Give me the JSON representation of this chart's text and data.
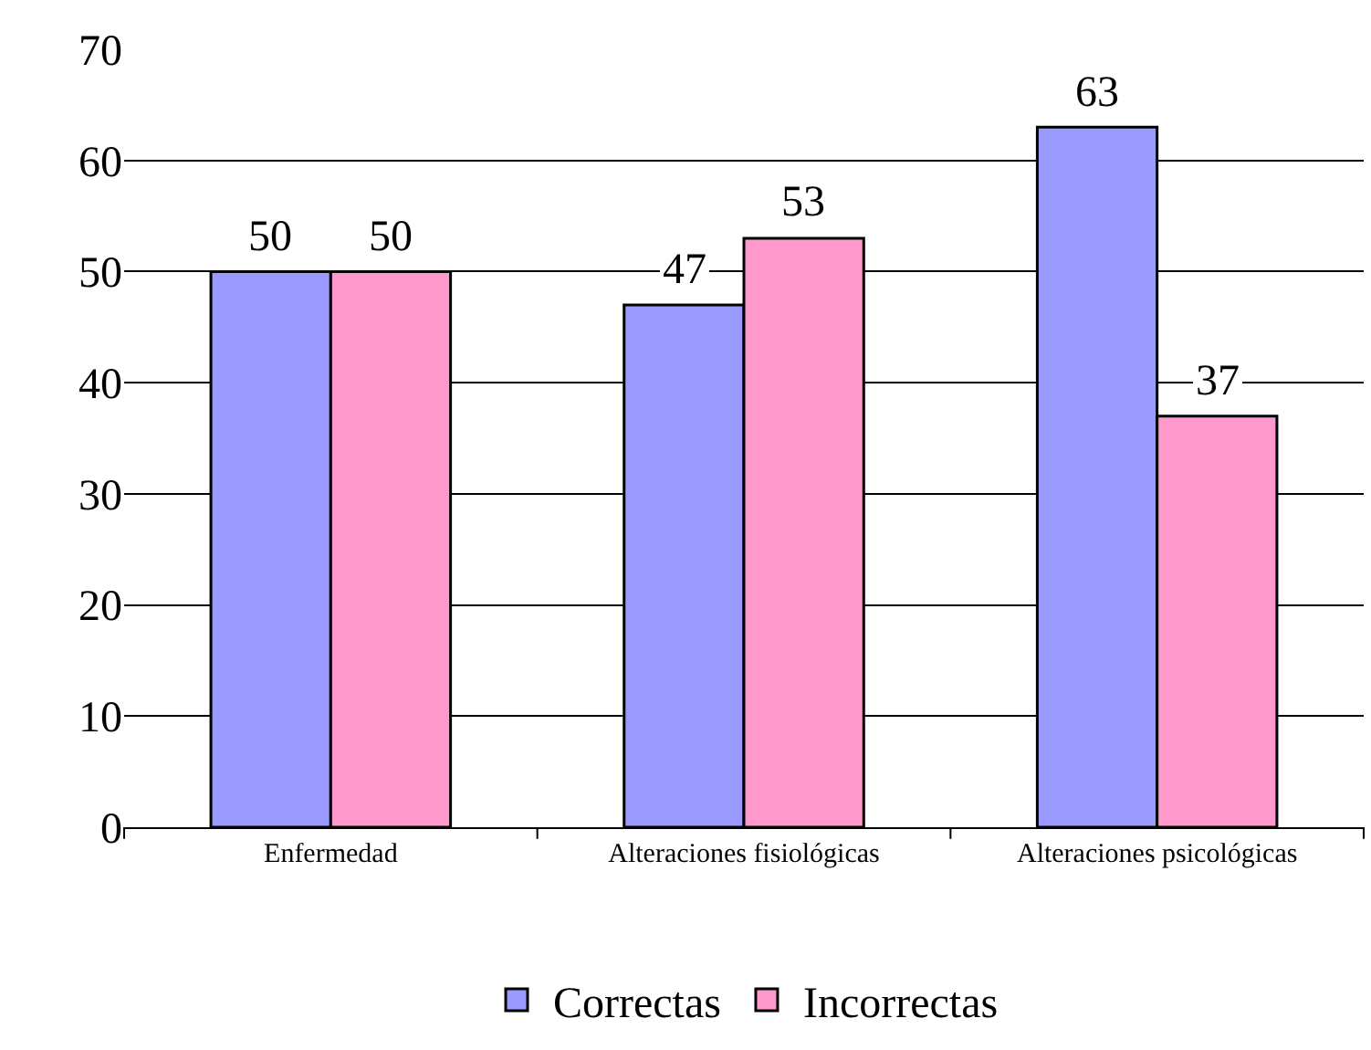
{
  "chart_data": {
    "type": "bar",
    "categories": [
      "Enfermedad",
      "Alteraciones fisiológicas",
      "Alteraciones psicológicas"
    ],
    "series": [
      {
        "name": "Correctas",
        "color": "#9999ff",
        "values": [
          50,
          47,
          63
        ]
      },
      {
        "name": "Incorrectas",
        "color": "#ff99cc",
        "values": [
          50,
          53,
          37
        ]
      }
    ],
    "ylim": [
      0,
      70
    ],
    "yticks": [
      0,
      10,
      20,
      30,
      40,
      50,
      60,
      70
    ],
    "grid": "y",
    "legend": "bottom",
    "data_labels": true
  }
}
